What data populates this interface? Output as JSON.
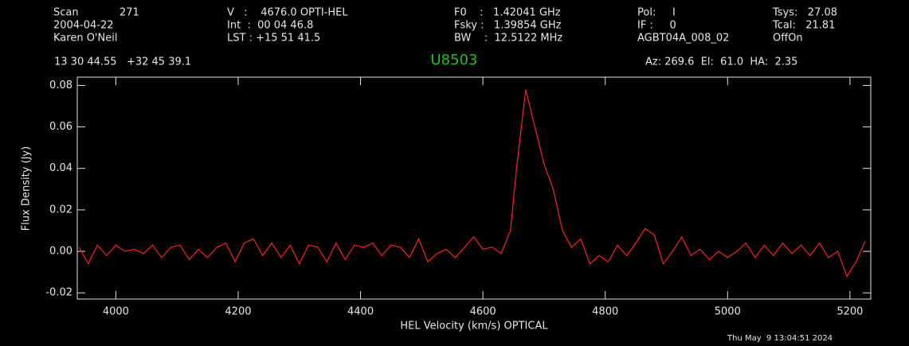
{
  "header": {
    "scan_label": "Scan",
    "scan": "271",
    "date": "2004-04-22",
    "observer": "Karen O'Neil",
    "col2": [
      "V   :    4676.0 OPTI-HEL",
      "Int  :  00 04 46.8",
      "LST : +15 51 41.5"
    ],
    "col3": [
      "F0    :   1.42041 GHz",
      "Fsky :   1.39854 GHz",
      "BW    :  12.5122 MHz"
    ],
    "col4": [
      "Pol:     I",
      "IF :     0",
      "AGBT04A_008_02"
    ],
    "col5": [
      "Tsys:   27.08",
      "Tcal:   21.81",
      "OffOn"
    ],
    "position": "13 30 44.55   +32 45 39.1",
    "pointing": "Az: 269.6  El:  61.0  HA:  2.35",
    "timestamp": "Thu May  9 13:04:51 2024"
  },
  "chart_data": {
    "type": "line",
    "title": "U8503",
    "xlabel": "HEL Velocity (km/s) OPTICAL",
    "ylabel": "Flux Density (Jy)",
    "xlim": [
      3937,
      5234
    ],
    "ylim": [
      -0.023,
      0.084
    ],
    "xticks": [
      4000,
      4200,
      4400,
      4600,
      4800,
      5000,
      5200
    ],
    "yticks": [
      -0.02,
      {
        "value": 0,
        "label": "0.00"
      },
      0.02,
      0.04,
      0.06,
      0.08
    ],
    "series": [
      {
        "color": "#ff2020",
        "x": [
          3940,
          3955,
          3970,
          3985,
          4000,
          4015,
          4030,
          4045,
          4060,
          4075,
          4090,
          4105,
          4120,
          4135,
          4150,
          4165,
          4180,
          4195,
          4210,
          4225,
          4240,
          4255,
          4270,
          4285,
          4300,
          4315,
          4330,
          4345,
          4360,
          4375,
          4390,
          4405,
          4420,
          4435,
          4450,
          4465,
          4480,
          4495,
          4510,
          4525,
          4540,
          4555,
          4570,
          4585,
          4600,
          4615,
          4630,
          4645,
          4655,
          4670,
          4685,
          4700,
          4715,
          4730,
          4745,
          4760,
          4775,
          4790,
          4805,
          4820,
          4835,
          4850,
          4865,
          4880,
          4895,
          4910,
          4925,
          4940,
          4955,
          4970,
          4985,
          5000,
          5015,
          5030,
          5045,
          5060,
          5075,
          5090,
          5105,
          5120,
          5135,
          5150,
          5165,
          5180,
          5195,
          5210,
          5225
        ],
        "values": [
          0.002,
          -0.006,
          0.003,
          -0.002,
          0.003,
          0.0,
          0.001,
          -0.001,
          0.003,
          -0.003,
          0.002,
          0.003,
          -0.004,
          0.001,
          -0.003,
          0.002,
          0.004,
          -0.005,
          0.004,
          0.006,
          -0.002,
          0.004,
          -0.003,
          0.003,
          -0.006,
          0.003,
          0.002,
          -0.005,
          0.004,
          -0.004,
          0.003,
          0.002,
          0.004,
          -0.002,
          0.003,
          0.002,
          -0.003,
          0.006,
          -0.005,
          -0.001,
          0.001,
          -0.003,
          0.002,
          0.007,
          0.001,
          0.002,
          -0.001,
          0.01,
          0.04,
          0.078,
          0.06,
          0.042,
          0.03,
          0.01,
          0.002,
          0.006,
          -0.006,
          -0.002,
          -0.005,
          0.003,
          -0.002,
          0.004,
          0.011,
          0.008,
          -0.006,
          0.0,
          0.007,
          -0.002,
          0.001,
          -0.004,
          0.0,
          -0.003,
          0.0,
          0.004,
          -0.003,
          0.003,
          -0.002,
          0.004,
          -0.001,
          0.003,
          -0.002,
          0.004,
          -0.003,
          0.0,
          -0.012,
          -0.005,
          0.005
        ]
      }
    ]
  }
}
